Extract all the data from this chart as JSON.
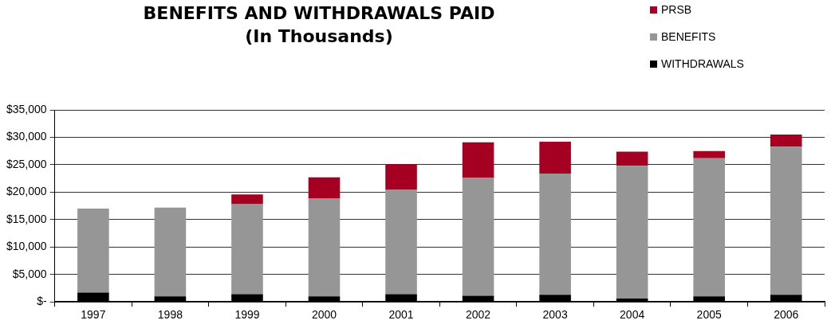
{
  "chart_data": {
    "type": "bar",
    "title": "BENEFITS AND WITHDRAWALS PAID",
    "subtitle": "(In Thousands)",
    "categories": [
      "1997",
      "1998",
      "1999",
      "2000",
      "2001",
      "2002",
      "2003",
      "2004",
      "2005",
      "2006"
    ],
    "stacked": true,
    "series": [
      {
        "name": "WITHDRAWALS",
        "color": "#000000",
        "values": [
          1700,
          1000,
          1400,
          1000,
          1400,
          1100,
          1300,
          600,
          1000,
          1300
        ]
      },
      {
        "name": "BENEFITS",
        "color": "#969696",
        "values": [
          15300,
          16200,
          16400,
          17900,
          19000,
          21500,
          22100,
          24200,
          25200,
          27000
        ]
      },
      {
        "name": "PRSB",
        "color": "#a50021",
        "values": [
          null,
          null,
          1800,
          3800,
          4700,
          6500,
          5800,
          2600,
          1300,
          2200
        ]
      }
    ],
    "ylim": [
      0,
      35000
    ],
    "yticks": [
      {
        "value": 0,
        "label": "$-"
      },
      {
        "value": 5000,
        "label": "$5,000"
      },
      {
        "value": 10000,
        "label": "$10,000"
      },
      {
        "value": 15000,
        "label": "$15,000"
      },
      {
        "value": 20000,
        "label": "$20,000"
      },
      {
        "value": 25000,
        "label": "$25,000"
      },
      {
        "value": 30000,
        "label": "$30,000"
      },
      {
        "value": 35000,
        "label": "$35,000"
      }
    ],
    "grid": "y",
    "legend": "top right"
  }
}
